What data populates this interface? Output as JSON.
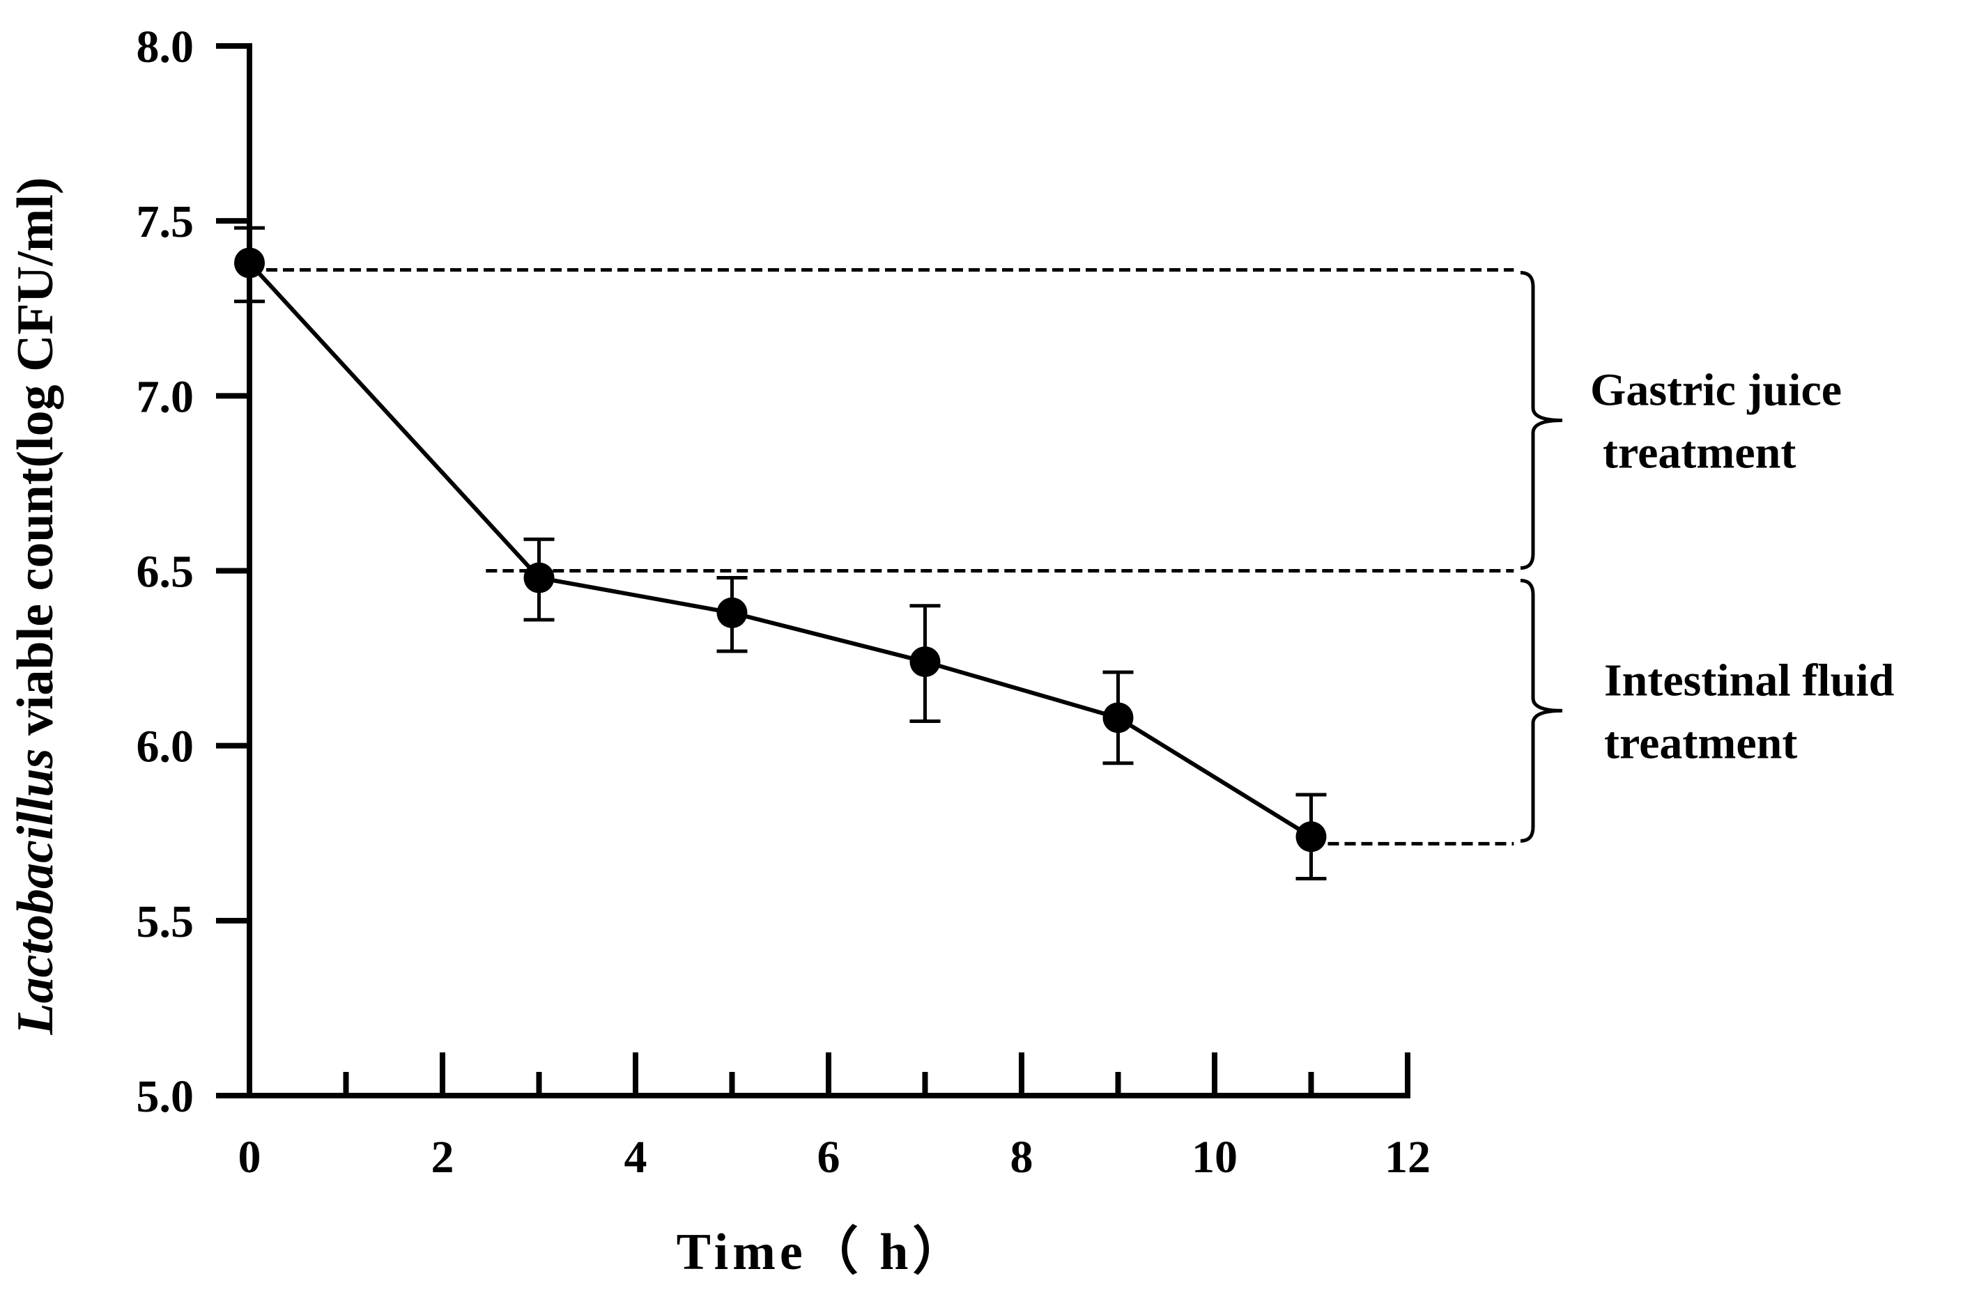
{
  "chart_data": {
    "type": "line",
    "title": "",
    "xlabel": "Time（ h）",
    "ylabel": {
      "italic": "Lactobacillus",
      "rest": " viable count(log CFU/ml)"
    },
    "xlim": [
      0,
      12
    ],
    "ylim": [
      5.0,
      8.0
    ],
    "xticks": [
      "0",
      "2",
      "4",
      "6",
      "8",
      "10",
      "12"
    ],
    "xtick_values": [
      0,
      2,
      4,
      6,
      8,
      10,
      12
    ],
    "xminor_ticks": [
      1,
      3,
      5,
      7,
      9,
      11
    ],
    "yticks": [
      "5.0",
      "5.5",
      "6.0",
      "6.5",
      "7.0",
      "7.5",
      "8.0"
    ],
    "ytick_values": [
      5.0,
      5.5,
      6.0,
      6.5,
      7.0,
      7.5,
      8.0
    ],
    "series": [
      {
        "name": "Lactobacillus viable count",
        "color": "#000000",
        "points": [
          {
            "x": 0,
            "y": 7.38,
            "err_low": 7.27,
            "err_high": 7.48
          },
          {
            "x": 3,
            "y": 6.48,
            "err_low": 6.36,
            "err_high": 6.59
          },
          {
            "x": 5,
            "y": 6.38,
            "err_low": 6.27,
            "err_high": 6.48
          },
          {
            "x": 7,
            "y": 6.24,
            "err_low": 6.07,
            "err_high": 6.4
          },
          {
            "x": 9,
            "y": 6.08,
            "err_low": 5.95,
            "err_high": 6.21
          },
          {
            "x": 11,
            "y": 5.74,
            "err_low": 5.62,
            "err_high": 5.86
          }
        ]
      }
    ],
    "reference_lines": [
      {
        "y": 7.36,
        "x_from": 0,
        "x_to": 13.1
      },
      {
        "y": 6.5,
        "x_from": 2.45,
        "x_to": 13.1
      },
      {
        "y": 5.72,
        "x_from": 11,
        "x_to": 13.1
      }
    ],
    "annotations": [
      {
        "id": "gastric",
        "lines": [
          "Gastric juice",
          "treatment"
        ],
        "y_from": 7.36,
        "y_to": 6.5
      },
      {
        "id": "intestinal",
        "lines": [
          "Intestinal fluid",
          "treatment"
        ],
        "y_from": 6.48,
        "y_to": 5.72
      }
    ]
  }
}
